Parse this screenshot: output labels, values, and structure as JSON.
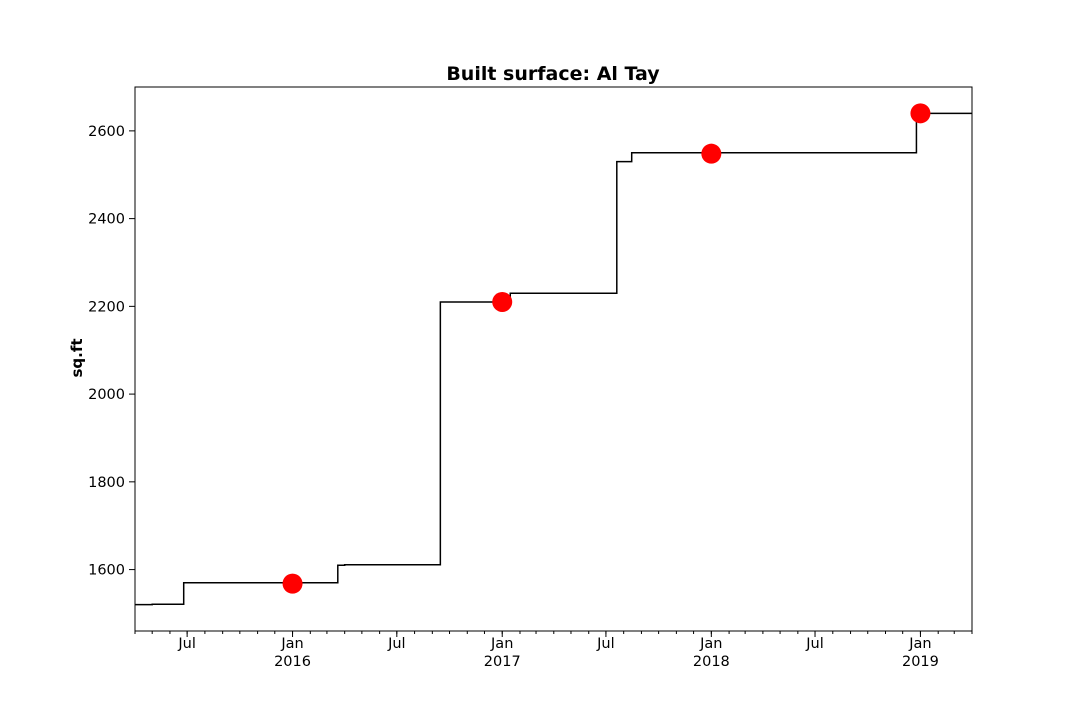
{
  "chart_data": {
    "type": "line",
    "title": "Built surface: Al Tay",
    "xlabel": "",
    "ylabel": "sq.ft",
    "xlim": [
      "2015-04-01",
      "2019-04-01"
    ],
    "ylim": [
      1460,
      2700
    ],
    "grid": false,
    "legend": "none",
    "x_ticks": [
      {
        "date": "2015-07-01",
        "label": "Jul",
        "sublabel": ""
      },
      {
        "date": "2016-01-01",
        "label": "Jan",
        "sublabel": "2016"
      },
      {
        "date": "2016-07-01",
        "label": "Jul",
        "sublabel": ""
      },
      {
        "date": "2017-01-01",
        "label": "Jan",
        "sublabel": "2017"
      },
      {
        "date": "2017-07-01",
        "label": "Jul",
        "sublabel": ""
      },
      {
        "date": "2018-01-01",
        "label": "Jan",
        "sublabel": "2018"
      },
      {
        "date": "2018-07-01",
        "label": "Jul",
        "sublabel": ""
      },
      {
        "date": "2019-01-01",
        "label": "Jan",
        "sublabel": "2019"
      }
    ],
    "y_ticks": [
      1600,
      1800,
      2000,
      2200,
      2400,
      2600
    ],
    "series": [
      {
        "style": "step",
        "color": "#000000",
        "points": [
          {
            "x": "2015-04-01",
            "y": 1520
          },
          {
            "x": "2015-05-01",
            "y": 1521
          },
          {
            "x": "2015-06-25",
            "y": 1570
          },
          {
            "x": "2016-03-20",
            "y": 1610
          },
          {
            "x": "2016-04-01",
            "y": 1611
          },
          {
            "x": "2016-09-15",
            "y": 2210
          },
          {
            "x": "2017-01-15",
            "y": 2230
          },
          {
            "x": "2017-07-20",
            "y": 2530
          },
          {
            "x": "2017-08-15",
            "y": 2550
          },
          {
            "x": "2018-12-25",
            "y": 2640
          },
          {
            "x": "2019-04-01",
            "y": 2640
          }
        ]
      },
      {
        "style": "scatter",
        "color": "#ff0000",
        "points": [
          {
            "x": "2016-01-01",
            "y": 1568
          },
          {
            "x": "2017-01-01",
            "y": 2210
          },
          {
            "x": "2018-01-01",
            "y": 2548
          },
          {
            "x": "2019-01-01",
            "y": 2640
          }
        ]
      }
    ]
  }
}
